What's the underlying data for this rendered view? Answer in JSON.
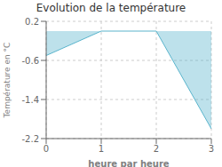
{
  "chart_data": {
    "type": "area",
    "title": "Evolution de la température",
    "xlabel": "heure par heure",
    "ylabel": "Température en °C",
    "x": [
      0,
      1,
      2,
      3
    ],
    "values": [
      -0.5,
      0.0,
      0.0,
      -2.0
    ],
    "xlim": [
      0,
      3
    ],
    "ylim": [
      -2.2,
      0.2
    ],
    "xticks": [
      0,
      1,
      2,
      3
    ],
    "yticks": [
      0.2,
      -0.6,
      -1.4,
      -2.2
    ],
    "color": "#5ab4cc",
    "grid": true
  }
}
